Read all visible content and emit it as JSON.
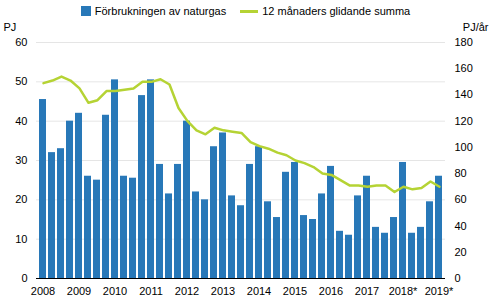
{
  "chart_data": {
    "type": "bar",
    "ylabel": "PJ",
    "y2label": "PJ/år",
    "categories": [
      "2008",
      null,
      null,
      null,
      "2009",
      null,
      null,
      null,
      "2010",
      null,
      null,
      null,
      "2011",
      null,
      null,
      null,
      "2012",
      null,
      null,
      null,
      "2013",
      null,
      null,
      null,
      "2014",
      null,
      null,
      null,
      "2015",
      null,
      null,
      null,
      "2016",
      null,
      null,
      null,
      "2017",
      null,
      null,
      null,
      "2018*",
      null,
      null,
      null,
      "2019*"
    ],
    "series": [
      {
        "name": "Förbrukningen av naturgas",
        "type": "bar",
        "color": "#2878b8",
        "values": [
          45.5,
          32,
          33,
          40,
          42,
          26,
          25,
          41.5,
          50.5,
          26,
          25.5,
          46.5,
          50.5,
          29,
          21.5,
          29,
          40,
          22,
          20,
          33.5,
          37,
          21,
          18.5,
          29,
          33.5,
          19.5,
          15.5,
          27,
          29.5,
          16,
          15,
          21.5,
          28.5,
          12,
          11,
          21,
          26,
          13,
          11.5,
          15.5,
          29.5,
          11.5,
          13,
          19.5,
          26
        ]
      },
      {
        "name": "12 månaders glidande summa",
        "type": "line",
        "color": "#b5d334",
        "axis": "y2",
        "values": [
          149,
          151,
          154,
          151,
          145,
          134,
          136,
          143,
          143,
          144,
          145,
          150,
          150,
          152,
          148,
          130,
          120,
          113,
          110,
          115,
          113,
          112,
          111,
          104,
          101,
          99,
          96,
          94,
          90,
          88,
          85,
          80,
          79,
          75,
          71,
          71,
          70,
          71,
          71,
          66,
          70,
          68,
          69,
          74,
          70
        ]
      }
    ],
    "ylim": [
      0,
      60
    ],
    "yticks": [
      0,
      10,
      20,
      30,
      40,
      50,
      60
    ],
    "y2lim": [
      0,
      180
    ],
    "y2ticks": [
      0,
      20,
      40,
      60,
      80,
      100,
      120,
      140,
      160,
      180
    ],
    "grid": true,
    "legend": "top"
  }
}
